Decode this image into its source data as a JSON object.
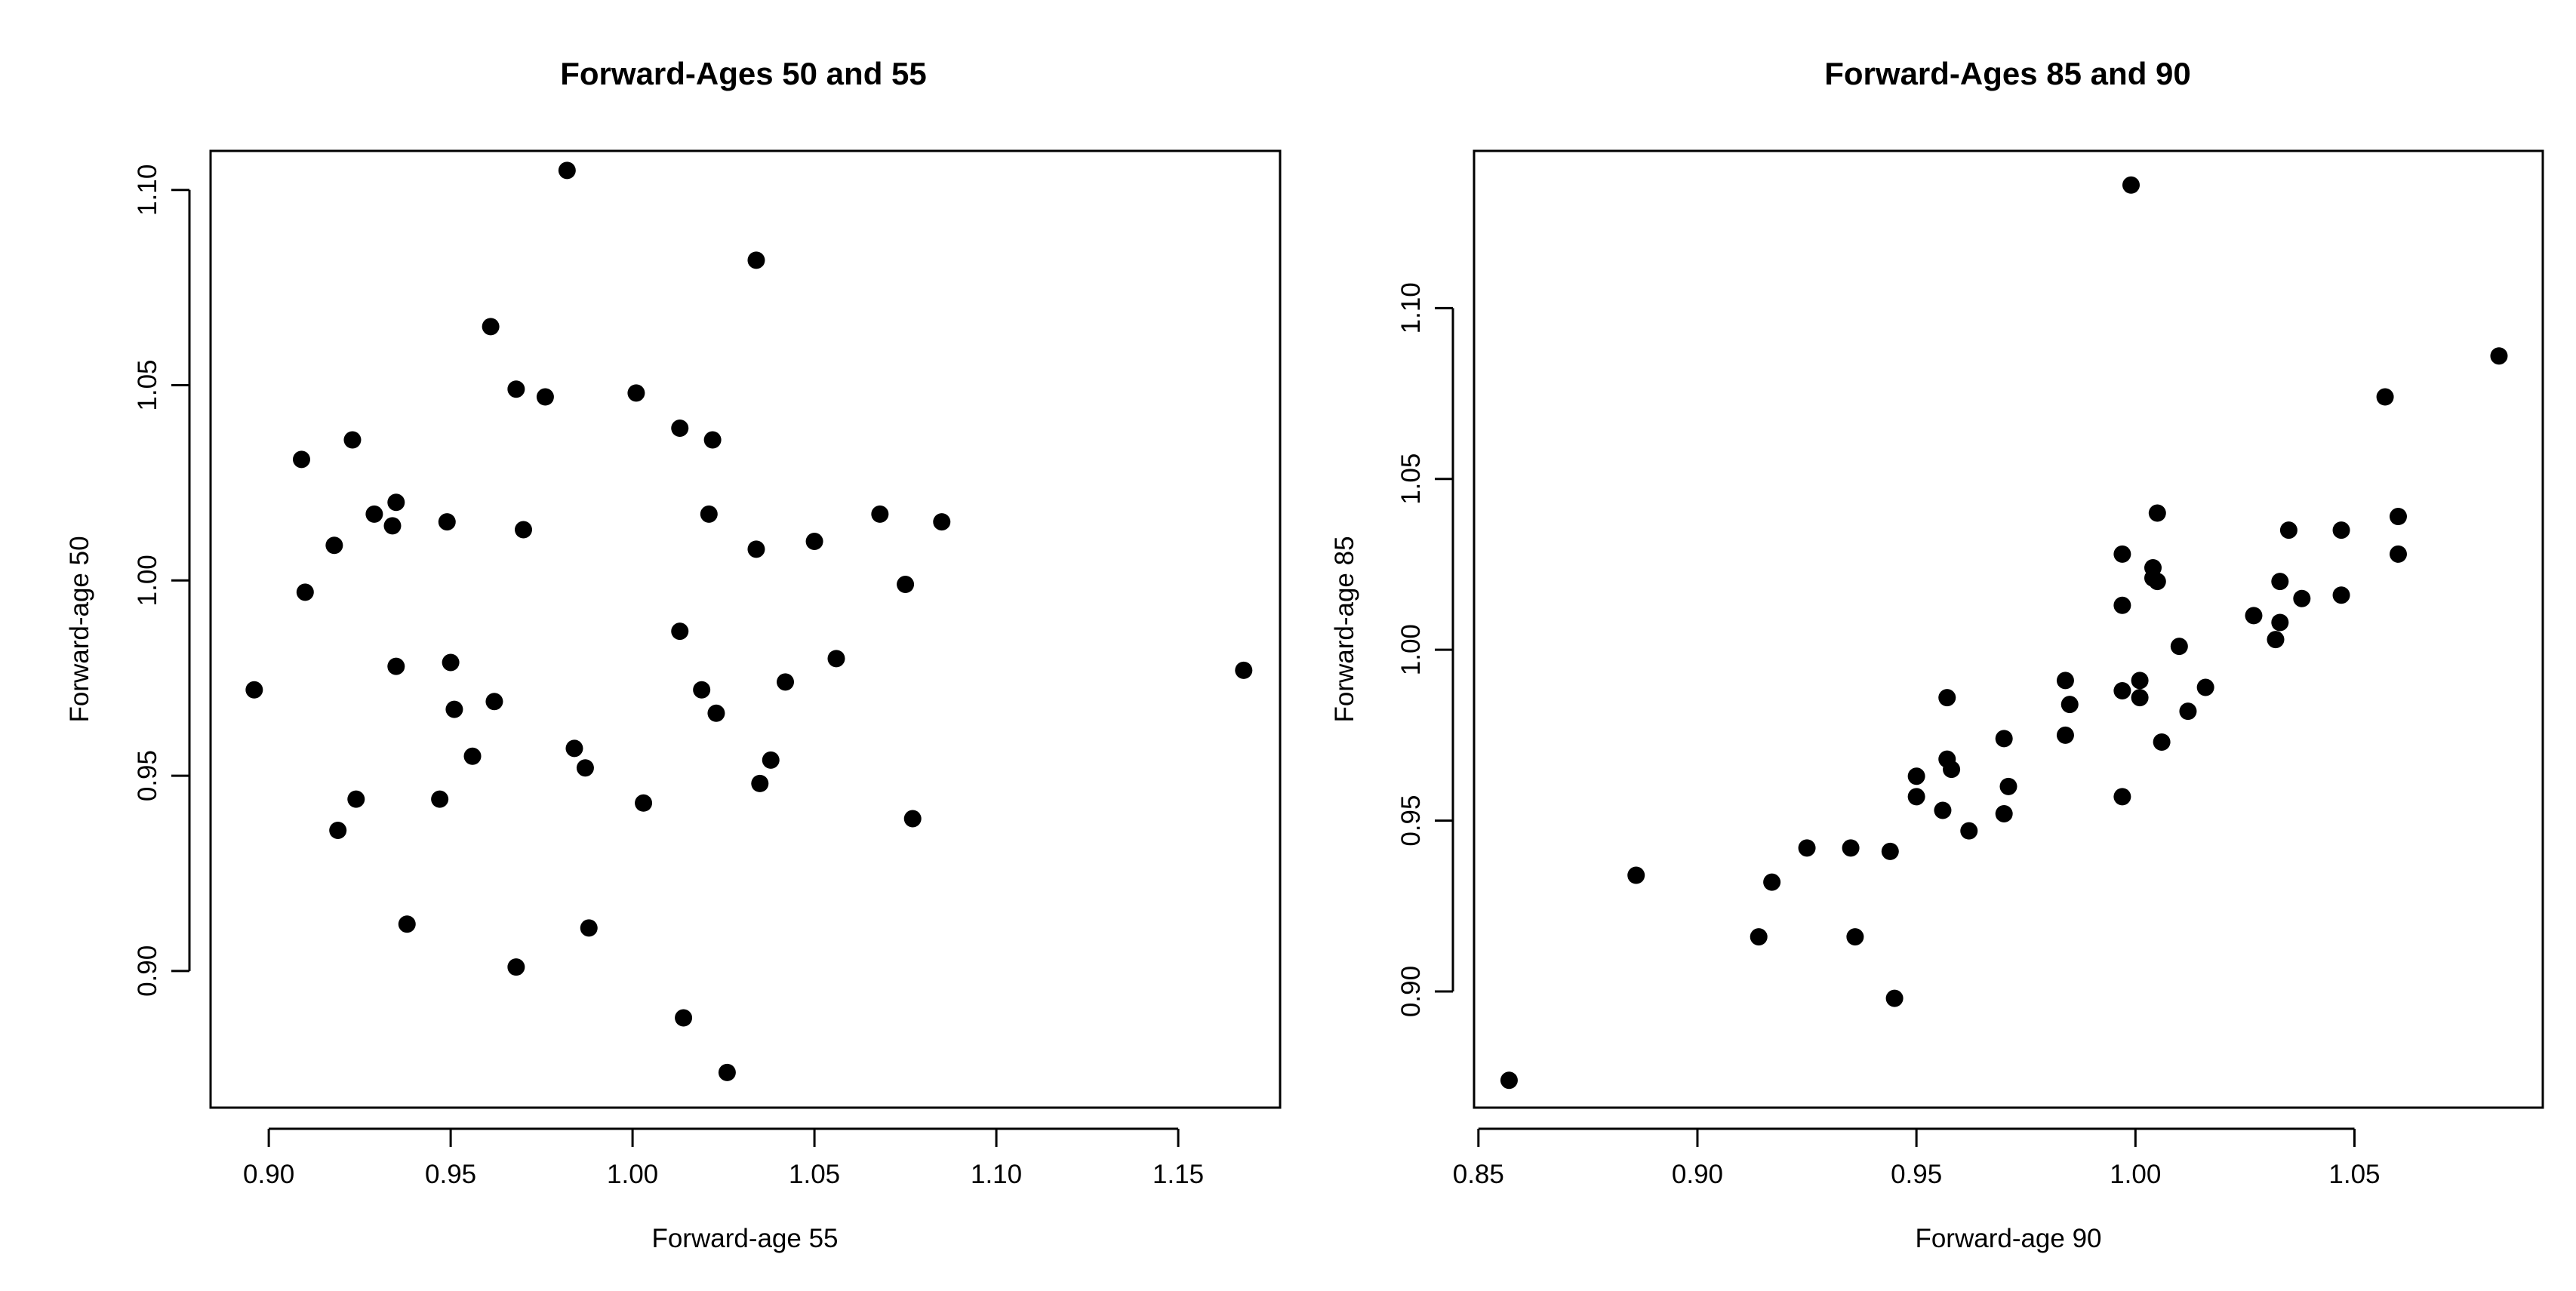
{
  "chart_data": [
    {
      "type": "scatter",
      "title": "Forward-Ages 50 and 55",
      "xlabel": "Forward-age 55",
      "ylabel": "Forward-age 50",
      "xlim": [
        0.884,
        1.178
      ],
      "ylim": [
        0.865,
        1.11
      ],
      "xticks": [
        0.9,
        0.95,
        1.0,
        1.05,
        1.1,
        1.15
      ],
      "xtick_labels": [
        "0.90",
        "0.95",
        "1.00",
        "1.05",
        "1.10",
        "1.15"
      ],
      "yticks": [
        0.9,
        0.95,
        1.0,
        1.05,
        1.1
      ],
      "ytick_labels": [
        "0.90",
        "0.95",
        "1.00",
        "1.05",
        "1.10"
      ],
      "grid": false,
      "points": [
        [
          0.896,
          0.972
        ],
        [
          0.909,
          1.031
        ],
        [
          0.91,
          0.997
        ],
        [
          0.918,
          1.009
        ],
        [
          0.919,
          0.936
        ],
        [
          0.923,
          1.036
        ],
        [
          0.924,
          0.944
        ],
        [
          0.929,
          1.017
        ],
        [
          0.934,
          1.014
        ],
        [
          0.935,
          1.02
        ],
        [
          0.935,
          0.978
        ],
        [
          0.938,
          0.912
        ],
        [
          0.947,
          0.944
        ],
        [
          0.949,
          1.015
        ],
        [
          0.95,
          0.979
        ],
        [
          0.951,
          0.967
        ],
        [
          0.956,
          0.955
        ],
        [
          0.961,
          1.065
        ],
        [
          0.962,
          0.969
        ],
        [
          0.968,
          1.049
        ],
        [
          0.968,
          0.901
        ],
        [
          0.97,
          1.013
        ],
        [
          0.976,
          1.047
        ],
        [
          0.982,
          1.105
        ],
        [
          0.984,
          0.957
        ],
        [
          0.987,
          0.952
        ],
        [
          0.988,
          0.911
        ],
        [
          1.001,
          1.048
        ],
        [
          1.003,
          0.943
        ],
        [
          1.013,
          1.039
        ],
        [
          1.013,
          0.987
        ],
        [
          1.014,
          0.888
        ],
        [
          1.019,
          0.972
        ],
        [
          1.021,
          1.017
        ],
        [
          1.022,
          1.036
        ],
        [
          1.023,
          0.966
        ],
        [
          1.026,
          0.874
        ],
        [
          1.034,
          1.082
        ],
        [
          1.034,
          1.008
        ],
        [
          1.035,
          0.948
        ],
        [
          1.038,
          0.954
        ],
        [
          1.042,
          0.974
        ],
        [
          1.05,
          1.01
        ],
        [
          1.056,
          0.98
        ],
        [
          1.068,
          1.017
        ],
        [
          1.075,
          0.999
        ],
        [
          1.077,
          0.939
        ],
        [
          1.085,
          1.015
        ],
        [
          1.168,
          0.977
        ]
      ]
    },
    {
      "type": "scatter",
      "title": "Forward-Ages 85 and 90",
      "xlabel": "Forward-age 90",
      "ylabel": "Forward-age 85",
      "xlim": [
        0.849,
        1.093
      ],
      "ylim": [
        0.866,
        1.146
      ],
      "xticks": [
        0.85,
        0.9,
        0.95,
        1.0,
        1.05
      ],
      "xtick_labels": [
        "0.85",
        "0.90",
        "0.95",
        "1.00",
        "1.05"
      ],
      "yticks": [
        0.9,
        0.95,
        1.0,
        1.05,
        1.1
      ],
      "ytick_labels": [
        "0.90",
        "0.95",
        "1.00",
        "1.05",
        "1.10"
      ],
      "grid": false,
      "points": [
        [
          0.857,
          0.874
        ],
        [
          0.886,
          0.934
        ],
        [
          0.914,
          0.916
        ],
        [
          0.917,
          0.932
        ],
        [
          0.925,
          0.942
        ],
        [
          0.935,
          0.942
        ],
        [
          0.936,
          0.916
        ],
        [
          0.944,
          0.941
        ],
        [
          0.945,
          0.898
        ],
        [
          0.95,
          0.963
        ],
        [
          0.95,
          0.957
        ],
        [
          0.956,
          0.953
        ],
        [
          0.957,
          0.986
        ],
        [
          0.957,
          0.968
        ],
        [
          0.958,
          0.965
        ],
        [
          0.962,
          0.947
        ],
        [
          0.97,
          0.974
        ],
        [
          0.97,
          0.952
        ],
        [
          0.971,
          0.96
        ],
        [
          0.984,
          0.991
        ],
        [
          0.984,
          0.975
        ],
        [
          0.985,
          0.984
        ],
        [
          0.997,
          1.028
        ],
        [
          0.997,
          1.013
        ],
        [
          0.997,
          0.988
        ],
        [
          0.997,
          0.957
        ],
        [
          0.999,
          1.136
        ],
        [
          1.001,
          0.991
        ],
        [
          1.001,
          0.986
        ],
        [
          1.004,
          1.024
        ],
        [
          1.004,
          1.021
        ],
        [
          1.005,
          1.04
        ],
        [
          1.005,
          1.02
        ],
        [
          1.006,
          0.973
        ],
        [
          1.01,
          1.001
        ],
        [
          1.012,
          0.982
        ],
        [
          1.016,
          0.989
        ],
        [
          1.027,
          1.01
        ],
        [
          1.032,
          1.003
        ],
        [
          1.033,
          1.02
        ],
        [
          1.033,
          1.008
        ],
        [
          1.035,
          1.035
        ],
        [
          1.038,
          1.015
        ],
        [
          1.047,
          1.035
        ],
        [
          1.047,
          1.016
        ],
        [
          1.057,
          1.074
        ],
        [
          1.06,
          1.039
        ],
        [
          1.06,
          1.028
        ],
        [
          1.083,
          1.086
        ]
      ]
    }
  ]
}
